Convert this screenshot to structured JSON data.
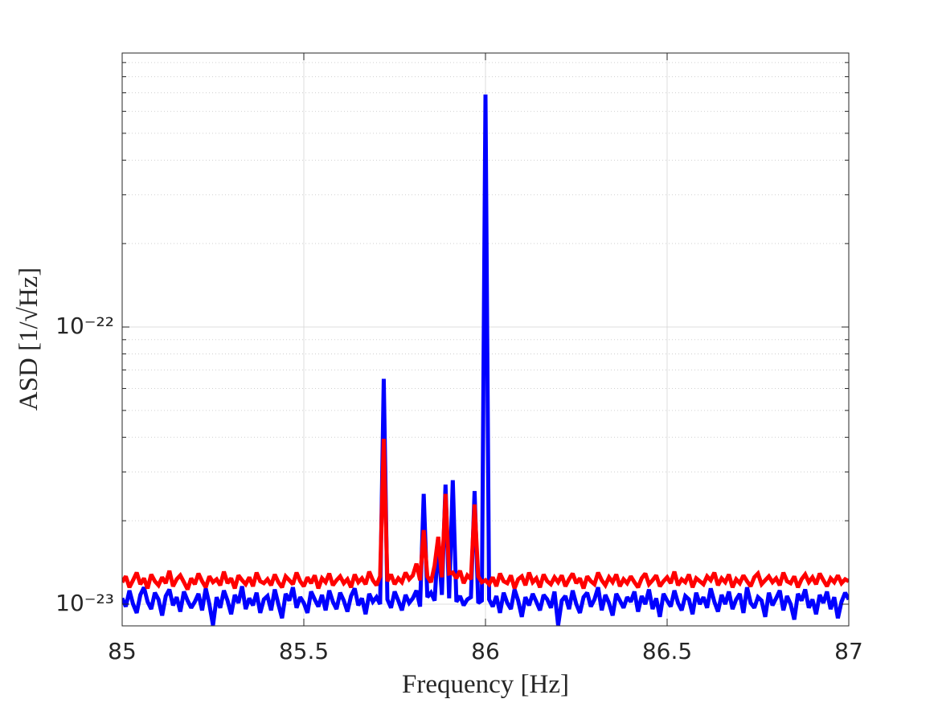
{
  "chart_data": {
    "type": "line",
    "xlabel": "Frequency [Hz]",
    "ylabel": "ASD [1/√Hz]",
    "xlim": [
      85,
      87
    ],
    "xticks": [
      85,
      85.5,
      86,
      86.5,
      87
    ],
    "ylim": [
      8.35e-24,
      9.74e-22
    ],
    "yscale": "log",
    "yticks": [
      {
        "value": 1e-23,
        "label": "10⁻²³"
      },
      {
        "value": 1e-22,
        "label": "10⁻²²"
      }
    ],
    "yminorticks": [
      2e-23,
      3e-23,
      4e-23,
      5e-23,
      6e-23,
      7e-23,
      8e-23,
      9e-23,
      2e-22,
      3e-22,
      4e-22,
      5e-22,
      6e-22,
      7e-22,
      8e-22,
      9e-22
    ],
    "grid": true,
    "x": [
      85,
      85.01,
      85.02,
      85.03,
      85.04,
      85.05,
      85.06,
      85.07,
      85.08,
      85.09,
      85.1,
      85.11,
      85.12,
      85.13,
      85.14,
      85.15,
      85.16,
      85.17,
      85.18,
      85.19,
      85.2,
      85.21,
      85.22,
      85.23,
      85.24,
      85.25,
      85.26,
      85.27,
      85.28,
      85.29,
      85.3,
      85.31,
      85.32,
      85.33,
      85.34,
      85.35,
      85.36,
      85.37,
      85.38,
      85.39,
      85.4,
      85.41,
      85.42,
      85.43,
      85.44,
      85.45,
      85.46,
      85.47,
      85.48,
      85.49,
      85.5,
      85.51,
      85.52,
      85.53,
      85.54,
      85.55,
      85.56,
      85.57,
      85.58,
      85.59,
      85.6,
      85.61,
      85.62,
      85.63,
      85.64,
      85.65,
      85.66,
      85.67,
      85.68,
      85.69,
      85.7,
      85.71,
      85.72,
      85.73,
      85.74,
      85.75,
      85.76,
      85.77,
      85.78,
      85.79,
      85.8,
      85.81,
      85.82,
      85.83,
      85.84,
      85.85,
      85.86,
      85.87,
      85.88,
      85.89,
      85.9,
      85.91,
      85.92,
      85.93,
      85.94,
      85.95,
      85.96,
      85.97,
      85.98,
      85.99,
      86,
      86.01,
      86.02,
      86.03,
      86.04,
      86.05,
      86.06,
      86.07,
      86.08,
      86.09,
      86.1,
      86.11,
      86.12,
      86.13,
      86.14,
      86.15,
      86.16,
      86.17,
      86.18,
      86.19,
      86.2,
      86.21,
      86.22,
      86.23,
      86.24,
      86.25,
      86.26,
      86.27,
      86.28,
      86.29,
      86.3,
      86.31,
      86.32,
      86.33,
      86.34,
      86.35,
      86.36,
      86.37,
      86.38,
      86.39,
      86.4,
      86.41,
      86.42,
      86.43,
      86.44,
      86.45,
      86.46,
      86.47,
      86.48,
      86.49,
      86.5,
      86.51,
      86.52,
      86.53,
      86.54,
      86.55,
      86.56,
      86.57,
      86.58,
      86.59,
      86.6,
      86.61,
      86.62,
      86.63,
      86.64,
      86.65,
      86.66,
      86.67,
      86.68,
      86.69,
      86.7,
      86.71,
      86.72,
      86.73,
      86.74,
      86.75,
      86.76,
      86.77,
      86.78,
      86.79,
      86.8,
      86.81,
      86.82,
      86.83,
      86.84,
      86.85,
      86.86,
      86.87,
      86.88,
      86.89,
      86.9,
      86.91,
      86.92,
      86.93,
      86.94,
      86.95,
      86.96,
      86.97,
      86.98,
      86.99,
      87
    ],
    "series": [
      {
        "color": "#0000ff",
        "values": [
          1.05e-23,
          9.8e-24,
          1.12e-23,
          1e-23,
          9.3e-24,
          1.08e-23,
          1.15e-23,
          1.02e-23,
          9.6e-24,
          1.1e-23,
          1.04e-23,
          9.1e-24,
          1.07e-23,
          1.13e-23,
          9.9e-24,
          1.06e-23,
          9.4e-24,
          1.11e-23,
          1.03e-23,
          9.7e-24,
          1.02e-23,
          1.09e-23,
          9.5e-24,
          1.14e-23,
          1e-23,
          8.4e-24,
          1.06e-23,
          9.7e-24,
          1.12e-23,
          1.03e-23,
          9.2e-24,
          1.08e-23,
          1.01e-23,
          1.16e-23,
          9.6e-24,
          1.05e-23,
          9.9e-24,
          1.1e-23,
          9.3e-24,
          1.04e-23,
          1.07e-23,
          9.5e-24,
          1.13e-23,
          1e-23,
          8.9e-24,
          1.09e-23,
          1.03e-23,
          1.15e-23,
          9.7e-24,
          1.06e-23,
          1.01e-23,
          9.3e-24,
          1.11e-23,
          1.04e-23,
          9.8e-24,
          1.08e-23,
          9.5e-24,
          1.12e-23,
          1.02e-23,
          9.6e-24,
          1.1e-23,
          1.03e-23,
          9.4e-24,
          1.07e-23,
          1.14e-23,
          9.9e-24,
          1.05e-23,
          9.2e-24,
          1.09e-23,
          1.02e-23,
          1.06e-23,
          1e-23,
          6.5e-23,
          1.04e-23,
          9.7e-24,
          1.11e-23,
          1.03e-23,
          9.5e-24,
          1.08e-23,
          1.01e-23,
          1.05e-23,
          1.12e-23,
          9.8e-24,
          2.5e-23,
          1.06e-23,
          1.1e-23,
          1.03e-23,
          1.69e-23,
          1.08e-23,
          2.7e-23,
          1.05e-23,
          2.8e-23,
          1.02e-23,
          1.07e-23,
          9.9e-24,
          1.04e-23,
          1.06e-23,
          2.56e-23,
          1.01e-23,
          1.03e-23,
          6.9e-22,
          1.04e-23,
          9.8e-24,
          1.07e-23,
          9.3e-24,
          1.1e-23,
          1.01e-23,
          9.6e-24,
          1.13e-23,
          1.03e-23,
          9e-24,
          1.06e-23,
          9.9e-24,
          1.09e-23,
          1.02e-23,
          9.5e-24,
          1.08e-23,
          1.04e-23,
          9.7e-24,
          1.11e-23,
          8.4e-24,
          1.03e-23,
          1.07e-23,
          9.6e-24,
          1.12e-23,
          1e-23,
          9.3e-24,
          1.06e-23,
          1.1e-23,
          9.8e-24,
          1.04e-23,
          1.15e-23,
          9.5e-24,
          1.08e-23,
          1.01e-23,
          9.1e-24,
          1.09e-23,
          1.03e-23,
          9.7e-24,
          1.06e-23,
          1.02e-23,
          1.11e-23,
          9.4e-24,
          1.07e-23,
          1e-23,
          1.13e-23,
          9.6e-24,
          1.05e-23,
          9e-24,
          1.09e-23,
          1.03e-23,
          9.8e-24,
          1.12e-23,
          1.01e-23,
          9.5e-24,
          1.07e-23,
          1.04e-23,
          9.2e-24,
          1.1e-23,
          1e-23,
          1.06e-23,
          9.7e-24,
          1.14e-23,
          1.02e-23,
          9.4e-24,
          1.08e-23,
          1e-23,
          1.11e-23,
          9.6e-24,
          1.04e-23,
          1.09e-23,
          9.3e-24,
          1.15e-23,
          1.01e-23,
          9.7e-24,
          1.06e-23,
          1.03e-23,
          9e-24,
          1.1e-23,
          9.9e-24,
          1.05e-23,
          1.12e-23,
          9.5e-24,
          1.07e-23,
          1e-23,
          8.8e-24,
          1.09e-23,
          1.03e-23,
          1.13e-23,
          9.7e-24,
          1.04e-23,
          9.2e-24,
          1.08e-23,
          1.01e-23,
          1.11e-23,
          9.6e-24,
          1.06e-23,
          8.9e-24,
          1.02e-23,
          1.1e-23,
          1.04e-23
        ]
      },
      {
        "color": "#ff0000",
        "values": [
          1.2e-23,
          1.26e-23,
          1.15e-23,
          1.22e-23,
          1.3e-23,
          1.18e-23,
          1.24e-23,
          1.14e-23,
          1.28e-23,
          1.21e-23,
          1.17e-23,
          1.25e-23,
          1.19e-23,
          1.32e-23,
          1.16e-23,
          1.23e-23,
          1.27e-23,
          1.2e-23,
          1.13e-23,
          1.24e-23,
          1.18e-23,
          1.29e-23,
          1.21e-23,
          1.15e-23,
          1.26e-23,
          1.2e-23,
          1.23e-23,
          1.17e-23,
          1.31e-23,
          1.19e-23,
          1.24e-23,
          1.14e-23,
          1.27e-23,
          1.22e-23,
          1.18e-23,
          1.25e-23,
          1.16e-23,
          1.3e-23,
          1.21e-23,
          1.19e-23,
          1.23e-23,
          1.17e-23,
          1.28e-23,
          1.2e-23,
          1.15e-23,
          1.26e-23,
          1.22e-23,
          1.18e-23,
          1.3e-23,
          1.21e-23,
          1.16e-23,
          1.25e-23,
          1.19e-23,
          1.27e-23,
          1.14e-23,
          1.24e-23,
          1.2e-23,
          1.29e-23,
          1.17e-23,
          1.22e-23,
          1.26e-23,
          1.19e-23,
          1.23e-23,
          1.15e-23,
          1.28e-23,
          1.2e-23,
          1.24e-23,
          1.18e-23,
          1.31e-23,
          1.22e-23,
          1.17e-23,
          1.26e-23,
          3.95e-23,
          1.21e-23,
          1.28e-23,
          1.18e-23,
          1.24e-23,
          1.2e-23,
          1.3e-23,
          1.23e-23,
          1.27e-23,
          1.4e-23,
          1.22e-23,
          1.85e-23,
          1.26e-23,
          1.2e-23,
          1.38e-23,
          1.75e-23,
          1.25e-23,
          2.5e-23,
          1.29e-23,
          1.3e-23,
          1.24e-23,
          1.32e-23,
          1.19e-23,
          1.27e-23,
          1.23e-23,
          2.29e-23,
          1.26e-23,
          1.2e-23,
          1.22e-23,
          1.18e-23,
          1.25e-23,
          1.16e-23,
          1.29e-23,
          1.21e-23,
          1.19e-23,
          1.27e-23,
          1.14e-23,
          1.23e-23,
          1.26e-23,
          1.17e-23,
          1.3e-23,
          1.2e-23,
          1.24e-23,
          1.15e-23,
          1.28e-23,
          1.21e-23,
          1.18e-23,
          1.25e-23,
          1.2e-23,
          1.27e-23,
          1.16e-23,
          1.23e-23,
          1.29e-23,
          1.19e-23,
          1.24e-23,
          1.14e-23,
          1.26e-23,
          1.21e-23,
          1.18e-23,
          1.3e-23,
          1.22e-23,
          1.17e-23,
          1.25e-23,
          1.2e-23,
          1.28e-23,
          1.16e-23,
          1.23e-23,
          1.19e-23,
          1.26e-23,
          1.2e-23,
          1.15e-23,
          1.24e-23,
          1.29e-23,
          1.18e-23,
          1.22e-23,
          1.27e-23,
          1.16e-23,
          1.21e-23,
          1.25e-23,
          1.19e-23,
          1.31e-23,
          1.17e-23,
          1.23e-23,
          1.2e-23,
          1.28e-23,
          1.15e-23,
          1.24e-23,
          1.21e-23,
          1.18e-23,
          1.26e-23,
          1.22e-23,
          1.3e-23,
          1.17e-23,
          1.24e-23,
          1.2e-23,
          1.28e-23,
          1.15e-23,
          1.23e-23,
          1.19e-23,
          1.27e-23,
          1.21e-23,
          1.16e-23,
          1.25e-23,
          1.29e-23,
          1.18e-23,
          1.22e-23,
          1.26e-23,
          1.2e-23,
          1.24e-23,
          1.17e-23,
          1.3e-23,
          1.21e-23,
          1.19e-23,
          1.26e-23,
          1.15e-23,
          1.23e-23,
          1.28e-23,
          1.2e-23,
          1.25e-23,
          1.18e-23,
          1.29e-23,
          1.22e-23,
          1.16e-23,
          1.24e-23,
          1.2e-23,
          1.27e-23,
          1.19e-23,
          1.23e-23,
          1.21e-23
        ]
      }
    ]
  }
}
